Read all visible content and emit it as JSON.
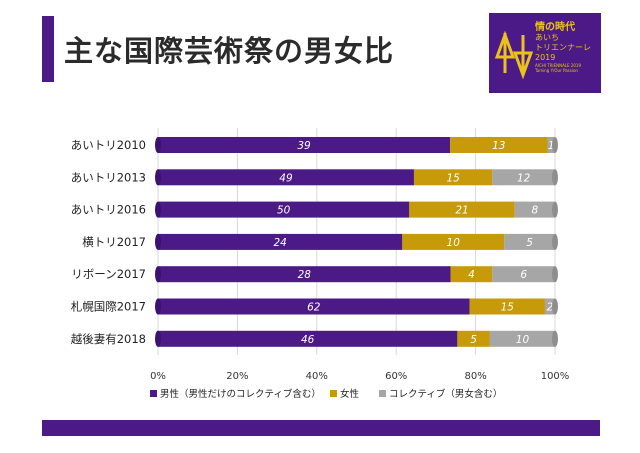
{
  "title": "主な国際芸術祭の男女比",
  "logo": {
    "title": "情の時代",
    "line1": "あいち",
    "line2": "トリエンナーレ",
    "year": "2019",
    "sub1": "AICHI TRIENNALE 2019",
    "sub2": "Taming Y/Our Passion"
  },
  "colors": {
    "male": "#4b1a86",
    "female": "#c79a09",
    "collective": "#a6a6a6",
    "accent": "#4b1a86"
  },
  "chart_data": {
    "type": "bar",
    "orientation": "horizontal",
    "stacked": true,
    "normalized": true,
    "categories": [
      "あいトリ2010",
      "あいトリ2013",
      "あいトリ2016",
      "横トリ2017",
      "リボーン2017",
      "札幌国際2017",
      "越後妻有2018"
    ],
    "series": [
      {
        "name": "男性（男性だけのコレクティブ含む）",
        "values": [
          39,
          49,
          50,
          24,
          28,
          62,
          46
        ]
      },
      {
        "name": "女性",
        "values": [
          13,
          15,
          21,
          10,
          4,
          15,
          5
        ]
      },
      {
        "name": "コレクティブ（男女含む）",
        "values": [
          1,
          12,
          8,
          5,
          6,
          2,
          10
        ]
      }
    ],
    "xticks": [
      "0%",
      "20%",
      "40%",
      "60%",
      "80%",
      "100%"
    ],
    "xlim": [
      0,
      100
    ],
    "legend_position": "bottom"
  }
}
